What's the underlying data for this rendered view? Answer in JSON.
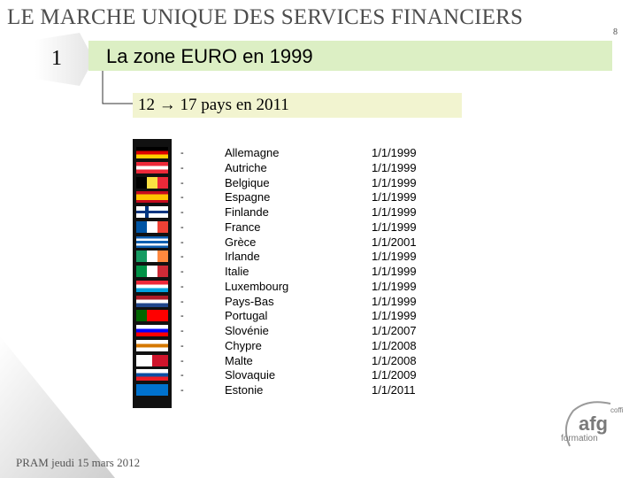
{
  "header": {
    "title": "LE MARCHE UNIQUE DES SERVICES FINANCIERS",
    "slide_number": "8"
  },
  "section": {
    "number": "1",
    "title": "La zone EURO en 1999",
    "band_color": "#dcefc4"
  },
  "subtitle": {
    "text": "12 → 17 pays en 2011",
    "band_color": "#f2f4d0"
  },
  "members": [
    {
      "country": "Allemagne",
      "date": "1/1/1999",
      "flag": "flag-germany-icon"
    },
    {
      "country": "Autriche",
      "date": "1/1/1999",
      "flag": "flag-austria-icon"
    },
    {
      "country": "Belgique",
      "date": "1/1/1999",
      "flag": "flag-belgium-icon"
    },
    {
      "country": "Espagne",
      "date": "1/1/1999",
      "flag": "flag-spain-icon"
    },
    {
      "country": "Finlande",
      "date": "1/1/1999",
      "flag": "flag-finland-icon"
    },
    {
      "country": "France",
      "date": "1/1/1999",
      "flag": "flag-france-icon"
    },
    {
      "country": "Grèce",
      "date": "1/1/2001",
      "flag": "flag-greece-icon"
    },
    {
      "country": "Irlande",
      "date": "1/1/1999",
      "flag": "flag-ireland-icon"
    },
    {
      "country": "Italie",
      "date": "1/1/1999",
      "flag": "flag-italy-icon"
    },
    {
      "country": "Luxembourg",
      "date": "1/1/1999",
      "flag": "flag-luxembourg-icon"
    },
    {
      "country": "Pays-Bas",
      "date": "1/1/1999",
      "flag": "flag-netherlands-icon"
    },
    {
      "country": "Portugal",
      "date": "1/1/1999",
      "flag": "flag-portugal-icon"
    },
    {
      "country": "Slovénie",
      "date": "1/1/2007",
      "flag": "flag-slovenia-icon"
    },
    {
      "country": "Chypre",
      "date": "1/1/2008",
      "flag": "flag-cyprus-icon"
    },
    {
      "country": "Malte",
      "date": "1/1/2008",
      "flag": "flag-malta-icon"
    },
    {
      "country": "Slovaquie",
      "date": "1/1/2009",
      "flag": "flag-slovakia-icon"
    },
    {
      "country": "Estonie",
      "date": "1/1/2011",
      "flag": "flag-estonia-icon"
    }
  ],
  "footer": {
    "text": "PRAM jeudi 15 mars 2012"
  },
  "logo": {
    "top": "coffi",
    "main": "afg",
    "bottom": "formation",
    "color": "#7a7a7a"
  }
}
